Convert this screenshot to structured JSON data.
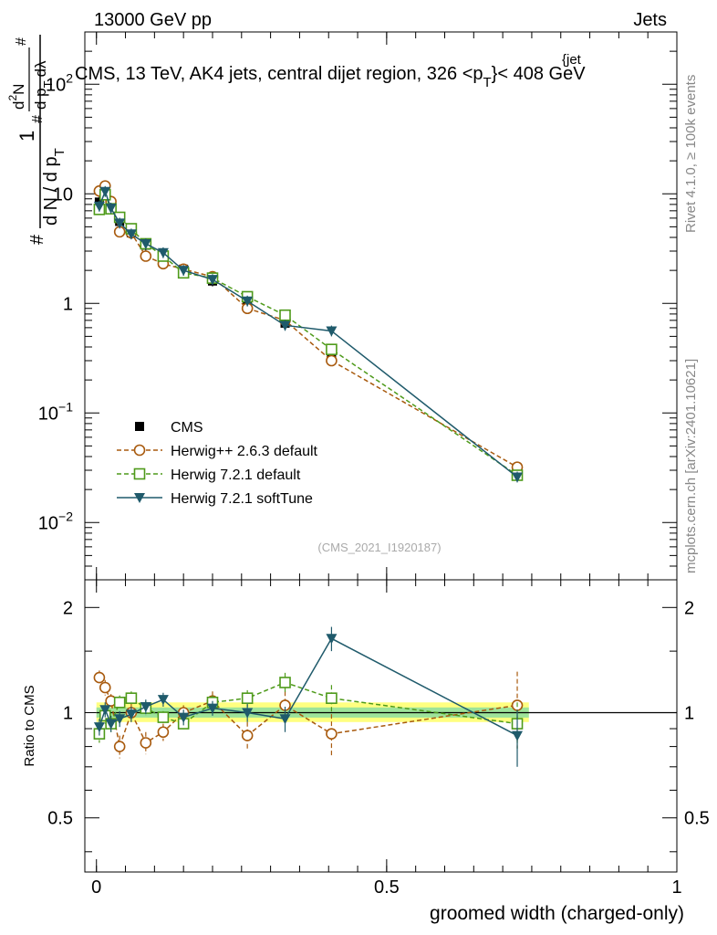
{
  "header": {
    "energy": "13000 GeV pp",
    "category": "Jets",
    "side_label": "Rivet 4.1.0, ≥ 100k events",
    "site_label": "mcplots.cern.ch [arXiv:2401.10621]"
  },
  "chart_data": {
    "type": "line",
    "title_main": "CMS, 13 TeV, AK4 jets, central dijet region, 326 <p",
    "title_sub": "T",
    "title_sup": "{jet",
    "title_end": "}< 408 GeV",
    "watermark": "(CMS_2021_I1920187)",
    "xlabel": "groomed width (charged-only)",
    "xlim": [
      -0.02,
      1.0
    ],
    "x_ticks": [
      "0",
      "0.5",
      "1"
    ],
    "x_tick_values": [
      0,
      0.5,
      1
    ],
    "main": {
      "yscale": "log",
      "ylim": [
        0.003,
        300
      ],
      "y_ticks": [
        {
          "value": 0.01,
          "base": "10",
          "exp": "−2"
        },
        {
          "value": 0.1,
          "base": "10",
          "exp": "−1"
        },
        {
          "value": 1,
          "base": "1",
          "exp": ""
        },
        {
          "value": 10,
          "base": "10",
          "exp": ""
        },
        {
          "value": 100,
          "base": "10",
          "exp": "2"
        }
      ],
      "ylabel_parts": [
        "1",
        "#",
        "d N / d p",
        "T",
        "#",
        "d",
        "2",
        "N",
        "d p",
        "T",
        "dλ",
        "#"
      ]
    },
    "ratio": {
      "ylabel": "Ratio to CMS",
      "ylim": [
        0.35,
        2.4
      ],
      "y_ticks": [
        "0.5",
        "1",
        "2"
      ],
      "y_tick_values": [
        0.5,
        1,
        2
      ]
    },
    "legend": [
      "CMS",
      "Herwig++ 2.6.3 default",
      "Herwig 7.2.1 default",
      "Herwig 7.2.1 softTune"
    ],
    "x": [
      0.005,
      0.015,
      0.025,
      0.04,
      0.06,
      0.085,
      0.115,
      0.15,
      0.2,
      0.26,
      0.325,
      0.405,
      0.725
    ],
    "series": [
      {
        "name": "CMS",
        "color": "#000000",
        "values": [
          8.4,
          10.0,
          7.9,
          5.6,
          4.4,
          3.4,
          2.65,
          2.05,
          1.6,
          1.05,
          0.66,
          0.35,
          0.03
        ]
      },
      {
        "name": "Herwig++ 2.6.3 default",
        "color": "#a85a0e",
        "values": [
          10.6,
          11.8,
          8.5,
          4.5,
          4.4,
          2.7,
          2.3,
          2.05,
          1.75,
          0.9,
          0.7,
          0.3,
          0.032
        ],
        "ratio": [
          1.26,
          1.18,
          1.08,
          0.8,
          1.0,
          0.82,
          0.88,
          1.0,
          1.08,
          0.86,
          1.05,
          0.87,
          1.05
        ],
        "ratio_err": [
          0.06,
          0.06,
          0.05,
          0.06,
          0.06,
          0.06,
          0.05,
          0.05,
          0.07,
          0.08,
          0.1,
          0.12,
          0.26
        ]
      },
      {
        "name": "Herwig 7.2.1 default",
        "color": "#4e9a1a",
        "values": [
          7.2,
          9.8,
          7.3,
          6.1,
          4.8,
          3.5,
          2.7,
          1.9,
          1.7,
          1.15,
          0.78,
          0.38,
          0.027
        ],
        "ratio": [
          0.87,
          0.98,
          0.93,
          1.07,
          1.1,
          1.03,
          0.97,
          0.93,
          1.07,
          1.1,
          1.22,
          1.1,
          0.93
        ],
        "ratio_err": [
          0.05,
          0.05,
          0.05,
          0.05,
          0.05,
          0.05,
          0.04,
          0.04,
          0.05,
          0.06,
          0.08,
          0.1,
          0.14
        ]
      },
      {
        "name": "Herwig 7.2.1 softTune",
        "color": "#1f5a6b",
        "values": [
          7.7,
          10.5,
          7.4,
          5.4,
          4.3,
          3.5,
          2.9,
          2.0,
          1.65,
          1.05,
          0.63,
          0.56,
          0.026
        ],
        "ratio": [
          0.91,
          1.02,
          0.93,
          0.96,
          0.99,
          1.04,
          1.09,
          0.97,
          1.03,
          1.0,
          0.96,
          1.63,
          0.86
        ],
        "ratio_err": [
          0.05,
          0.05,
          0.05,
          0.05,
          0.05,
          0.05,
          0.05,
          0.05,
          0.05,
          0.06,
          0.08,
          0.13,
          0.16
        ]
      }
    ]
  }
}
